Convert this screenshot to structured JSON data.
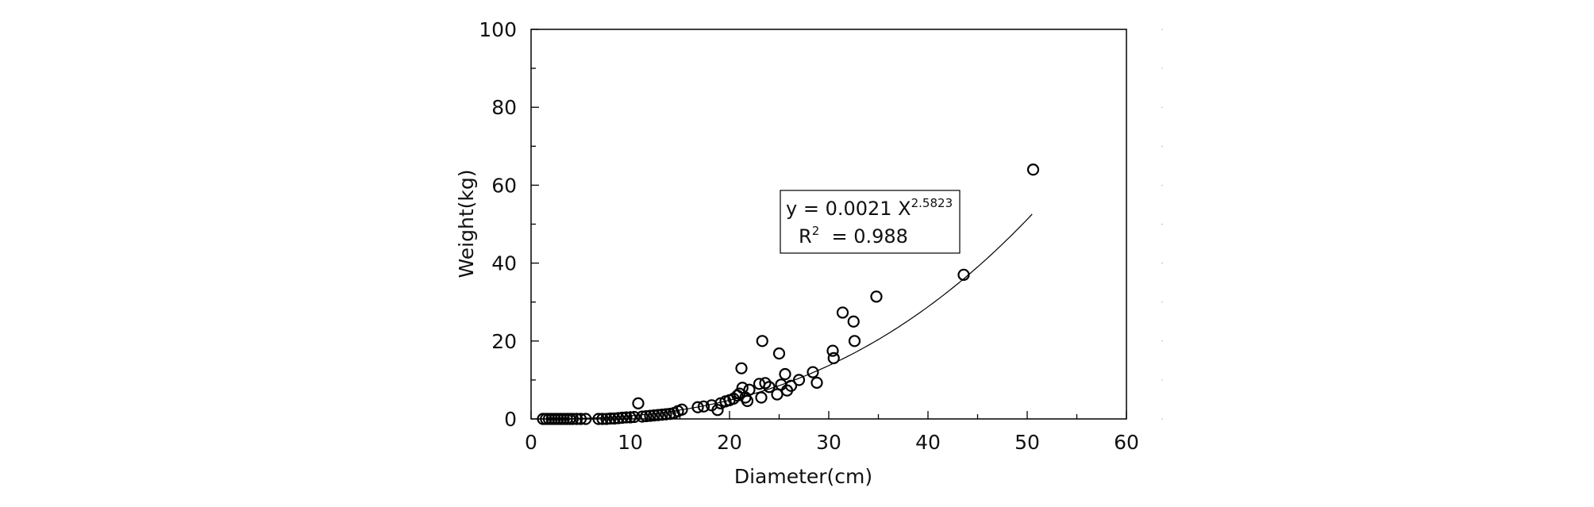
{
  "chart_data": {
    "type": "scatter",
    "xlabel": "Diameter(cm)",
    "ylabel": "Weight(kg)",
    "xlim": [
      0,
      60
    ],
    "ylim": [
      0,
      100
    ],
    "xticks": [
      "0",
      "10",
      "20",
      "30",
      "40",
      "50",
      "60"
    ],
    "yticks": [
      "0",
      "20",
      "40",
      "60",
      "80",
      "100"
    ],
    "grid": false,
    "legend": "none",
    "points": [
      [
        1.2,
        0
      ],
      [
        1.5,
        0
      ],
      [
        1.8,
        0
      ],
      [
        2.1,
        0
      ],
      [
        2.4,
        0
      ],
      [
        2.7,
        0
      ],
      [
        3.0,
        0
      ],
      [
        3.3,
        0
      ],
      [
        3.6,
        0
      ],
      [
        3.9,
        0
      ],
      [
        4.2,
        0
      ],
      [
        4.6,
        0
      ],
      [
        5.0,
        0
      ],
      [
        5.5,
        0
      ],
      [
        6.8,
        0
      ],
      [
        7.2,
        0
      ],
      [
        7.6,
        0
      ],
      [
        8.0,
        0.1
      ],
      [
        8.4,
        0.1
      ],
      [
        8.8,
        0.2
      ],
      [
        9.2,
        0.3
      ],
      [
        9.6,
        0.4
      ],
      [
        10.0,
        0.4
      ],
      [
        10.4,
        0.5
      ],
      [
        10.8,
        4.0
      ],
      [
        11.2,
        0.6
      ],
      [
        11.6,
        0.7
      ],
      [
        12.0,
        0.8
      ],
      [
        12.4,
        0.9
      ],
      [
        12.8,
        1.0
      ],
      [
        13.2,
        1.1
      ],
      [
        13.6,
        1.2
      ],
      [
        14.0,
        1.3
      ],
      [
        14.4,
        1.5
      ],
      [
        14.8,
        2.0
      ],
      [
        15.2,
        2.4
      ],
      [
        16.8,
        3.0
      ],
      [
        17.4,
        3.2
      ],
      [
        18.2,
        3.5
      ],
      [
        18.8,
        2.3
      ],
      [
        19.1,
        4.0
      ],
      [
        19.6,
        4.5
      ],
      [
        20.0,
        4.8
      ],
      [
        20.4,
        5.2
      ],
      [
        20.8,
        6.0
      ],
      [
        21.0,
        6.5
      ],
      [
        21.3,
        8.0
      ],
      [
        21.6,
        5.5
      ],
      [
        21.8,
        4.6
      ],
      [
        21.2,
        13.0
      ],
      [
        22.0,
        7.5
      ],
      [
        23.0,
        9.0
      ],
      [
        23.2,
        5.5
      ],
      [
        23.6,
        9.2
      ],
      [
        24.0,
        8.2
      ],
      [
        23.3,
        20.0
      ],
      [
        24.8,
        6.3
      ],
      [
        25.0,
        16.8
      ],
      [
        25.2,
        8.8
      ],
      [
        25.6,
        11.5
      ],
      [
        25.8,
        7.3
      ],
      [
        26.2,
        8.5
      ],
      [
        27.0,
        10.0
      ],
      [
        28.4,
        12.0
      ],
      [
        28.8,
        9.3
      ],
      [
        30.4,
        17.5
      ],
      [
        30.5,
        15.6
      ],
      [
        31.4,
        27.3
      ],
      [
        32.5,
        25.0
      ],
      [
        32.6,
        20.0
      ],
      [
        34.8,
        31.4
      ],
      [
        43.6,
        37.0
      ],
      [
        50.6,
        64.0
      ]
    ],
    "trendline": {
      "type": "power",
      "coefficient": 0.0021,
      "exponent": 2.5823,
      "x_range": [
        1,
        50.5
      ]
    },
    "annotation": {
      "line1_prefix": "y = 0.0021 X",
      "line1_sup": "2.5823",
      "line2_prefix": "R",
      "line2_sup": "2",
      "line2_suffix": "  = 0.988"
    }
  }
}
